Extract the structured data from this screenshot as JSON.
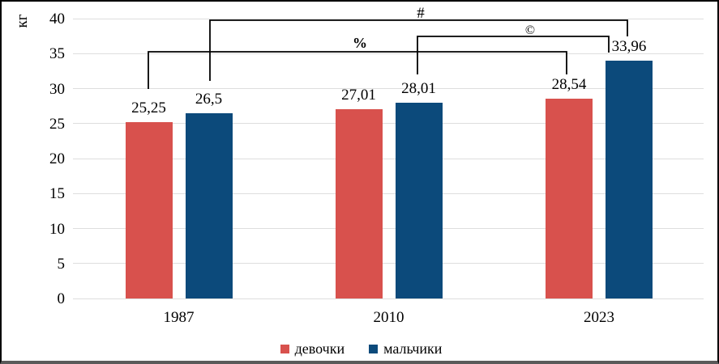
{
  "chart_data": {
    "type": "bar",
    "title": "",
    "ylabel": "кг",
    "xlabel": "",
    "categories": [
      "1987",
      "2010",
      "2023"
    ],
    "series": [
      {
        "name": "девочки",
        "color": "#d8514d",
        "values": [
          25.25,
          27.01,
          28.54
        ],
        "value_labels": [
          "25,25",
          "27,01",
          "28,54"
        ]
      },
      {
        "name": "мальчики",
        "color": "#0c4a7b",
        "values": [
          26.5,
          28.01,
          33.96
        ],
        "value_labels": [
          "26,5",
          "28,01",
          "33,96"
        ]
      }
    ],
    "ylim": [
      0,
      40
    ],
    "yticks": [
      0,
      5,
      10,
      15,
      20,
      25,
      30,
      35,
      40
    ],
    "grid": true,
    "legend_position": "bottom",
    "annotations": [
      {
        "symbol": "%",
        "connects": [
          "девочки 1987",
          "девочки 2023"
        ]
      },
      {
        "symbol": "#",
        "connects": [
          "мальчики 1987",
          "мальчики 2023"
        ]
      },
      {
        "symbol": "©",
        "connects": [
          "мальчики 2010",
          "мальчики 2023"
        ]
      }
    ]
  }
}
